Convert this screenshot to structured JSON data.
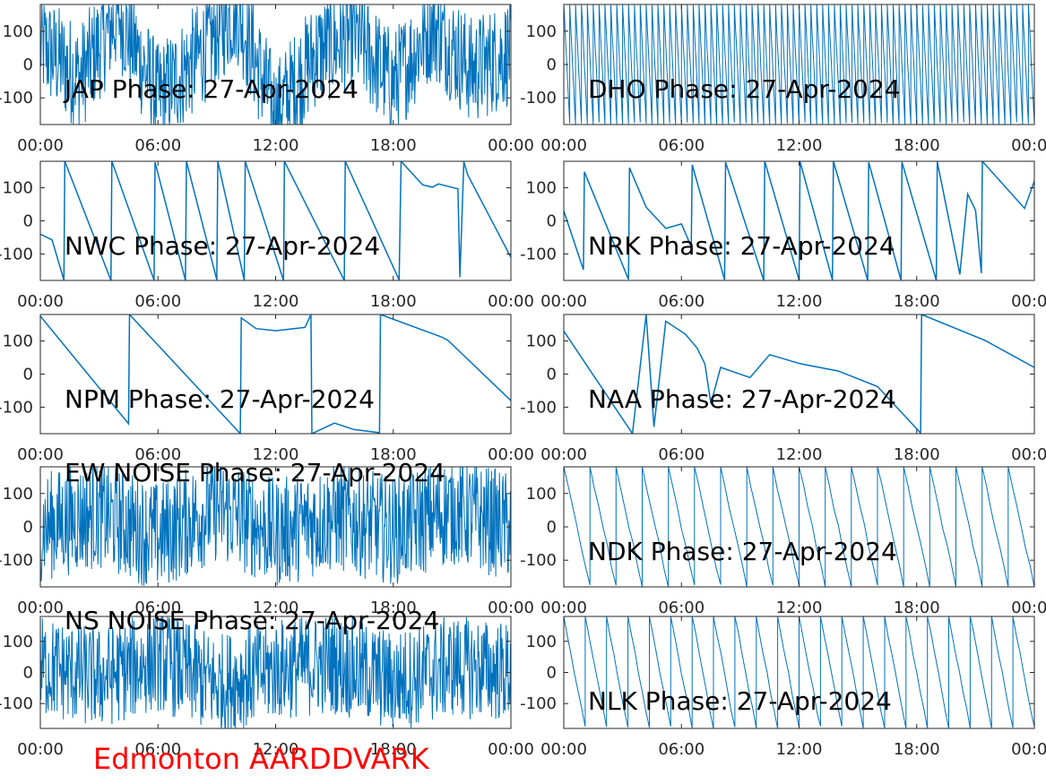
{
  "figure": {
    "footer_text": "Edmonton AARDDVARK",
    "footer_color": "#ff0000",
    "line_color": "#0072bd",
    "axis_color": "#262626"
  },
  "chart_data": [
    {
      "type": "line",
      "title": "JAP Phase: 27-Apr-2024",
      "xlabel": "",
      "ylabel": "",
      "x_ticks": [
        "00:00",
        "06:00",
        "12:00",
        "18:00",
        "00:00"
      ],
      "y_ticks": [
        "100",
        "0",
        "-100"
      ],
      "ylim": [
        -180,
        180
      ],
      "xlim_hours": [
        0,
        24
      ],
      "pattern": "noise",
      "cycles": 0,
      "series": [
        {
          "x_hours": [
            0,
            2,
            4,
            6,
            8,
            10,
            12,
            14,
            16,
            18,
            20,
            22,
            24
          ],
          "values": [
            60,
            -40,
            150,
            -100,
            20,
            170,
            -150,
            30,
            90,
            -60,
            120,
            -20,
            40
          ]
        }
      ]
    },
    {
      "type": "line",
      "title": "DHO Phase: 27-Apr-2024",
      "xlabel": "",
      "ylabel": "",
      "x_ticks": [
        "00:00",
        "06:00",
        "12:00",
        "18:00",
        "00:00"
      ],
      "y_ticks": [
        "100",
        "0",
        "-100"
      ],
      "ylim": [
        -180,
        180
      ],
      "xlim_hours": [
        0,
        24
      ],
      "pattern": "sawtooth",
      "cycles": 80,
      "series": [
        {
          "x_hours": [
            0,
            24
          ],
          "values": [
            180,
            -180
          ]
        }
      ]
    },
    {
      "type": "line",
      "title": "NWC Phase: 27-Apr-2024",
      "xlabel": "",
      "ylabel": "",
      "x_ticks": [
        "00:00",
        "06:00",
        "12:00",
        "18:00",
        "00:00"
      ],
      "y_ticks": [
        "100",
        "0",
        "-100"
      ],
      "ylim": [
        -180,
        180
      ],
      "xlim_hours": [
        0,
        24
      ],
      "pattern": "wrap",
      "cycles": 0,
      "series": [
        {
          "x_hours": [
            0,
            0.6,
            1.2,
            1.25,
            3.6,
            3.65,
            5.8,
            5.85,
            7.4,
            7.45,
            9.0,
            9.05,
            10.4,
            10.45,
            12.4,
            12.45,
            15.5,
            15.55,
            18.3,
            18.4,
            19.3,
            19.5,
            20.0,
            20.3,
            21.3,
            21.4,
            21.6,
            21.8,
            24.0
          ],
          "values": [
            -40,
            -60,
            -180,
            180,
            -180,
            180,
            -180,
            180,
            -180,
            180,
            -180,
            180,
            -180,
            180,
            -180,
            180,
            -180,
            180,
            -180,
            180,
            120,
            110,
            100,
            110,
            95,
            -170,
            180,
            140,
            -110
          ]
        }
      ]
    },
    {
      "type": "line",
      "title": "NRK Phase: 27-Apr-2024",
      "xlabel": "",
      "ylabel": "",
      "x_ticks": [
        "00:00",
        "06:00",
        "12:00",
        "18:00",
        "00:00"
      ],
      "y_ticks": [
        "100",
        "0",
        "-100"
      ],
      "ylim": [
        -180,
        180
      ],
      "xlim_hours": [
        0,
        24
      ],
      "pattern": "wrap",
      "cycles": 0,
      "series": [
        {
          "x_hours": [
            0,
            1.0,
            1.05,
            3.3,
            3.35,
            4.2,
            5.2,
            6.0,
            6.5,
            6.55,
            8.2,
            8.25,
            10.2,
            10.25,
            12.0,
            12.05,
            13.7,
            13.75,
            15.5,
            15.55,
            17.2,
            17.25,
            19.0,
            19.05,
            20.2,
            20.6,
            21.0,
            21.3,
            21.35,
            23.5,
            24.0
          ],
          "values": [
            30,
            -150,
            150,
            -180,
            160,
            40,
            -20,
            -10,
            -80,
            170,
            -180,
            180,
            -180,
            180,
            -180,
            180,
            -180,
            180,
            -180,
            180,
            -180,
            180,
            -180,
            180,
            -160,
            80,
            30,
            -160,
            180,
            40,
            120
          ]
        }
      ]
    },
    {
      "type": "line",
      "title": "NPM Phase: 27-Apr-2024",
      "xlabel": "",
      "ylabel": "",
      "x_ticks": [
        "00:00",
        "06:00",
        "12:00",
        "18:00",
        "00:00"
      ],
      "y_ticks": [
        "100",
        "0",
        "-100"
      ],
      "ylim": [
        -180,
        180
      ],
      "xlim_hours": [
        0,
        24
      ],
      "pattern": "wrap",
      "cycles": 0,
      "series": [
        {
          "x_hours": [
            0,
            4.5,
            4.55,
            10.2,
            10.25,
            11.0,
            12.0,
            13.5,
            13.8,
            13.85,
            15.0,
            16.0,
            17.3,
            17.35,
            20.5,
            20.8,
            24.0
          ],
          "values": [
            175,
            -150,
            180,
            -180,
            170,
            140,
            130,
            140,
            180,
            -180,
            -150,
            -170,
            -180,
            180,
            110,
            100,
            -80
          ]
        }
      ]
    },
    {
      "type": "line",
      "title": "NAA Phase: 27-Apr-2024",
      "xlabel": "",
      "ylabel": "",
      "x_ticks": [
        "00:00",
        "06:00",
        "12:00",
        "18:00",
        "00:00"
      ],
      "y_ticks": [
        "100",
        "0",
        "-100"
      ],
      "ylim": [
        -180,
        180
      ],
      "xlim_hours": [
        0,
        24
      ],
      "pattern": "wrap",
      "cycles": 0,
      "series": [
        {
          "x_hours": [
            0,
            3.5,
            4.2,
            4.6,
            5.2,
            6.2,
            6.8,
            7.2,
            7.5,
            8.0,
            9.5,
            10.5,
            12.0,
            14.0,
            16.0,
            18.2,
            18.25,
            21.5,
            24.0
          ],
          "values": [
            130,
            -180,
            180,
            -160,
            160,
            120,
            80,
            30,
            -90,
            20,
            -10,
            60,
            30,
            10,
            -40,
            -180,
            180,
            100,
            20
          ]
        }
      ]
    },
    {
      "type": "line",
      "title": "EW NOISE Phase: 27-Apr-2024",
      "xlabel": "",
      "ylabel": "",
      "x_ticks": [
        "00:00",
        "06:00",
        "12:00",
        "18:00",
        "00:00"
      ],
      "y_ticks": [
        "100",
        "0",
        "-100"
      ],
      "ylim": [
        -180,
        180
      ],
      "xlim_hours": [
        0,
        24
      ],
      "pattern": "noise",
      "cycles": 0,
      "series": [
        {
          "x_hours": [
            0,
            3,
            6,
            9,
            12,
            15,
            18,
            21,
            24
          ],
          "values": [
            0,
            40,
            -30,
            60,
            -20,
            30,
            -10,
            50,
            0
          ]
        }
      ]
    },
    {
      "type": "line",
      "title": "NDK Phase: 27-Apr-2024",
      "xlabel": "",
      "ylabel": "",
      "x_ticks": [
        "00:00",
        "06:00",
        "12:00",
        "18:00",
        "00:00"
      ],
      "y_ticks": [
        "100",
        "0",
        "-100"
      ],
      "ylim": [
        -180,
        180
      ],
      "xlim_hours": [
        0,
        24
      ],
      "pattern": "sawtooth",
      "cycles": 18,
      "series": [
        {
          "x_hours": [
            0,
            24
          ],
          "values": [
            180,
            -180
          ]
        }
      ]
    },
    {
      "type": "line",
      "title": "NS NOISE Phase: 27-Apr-2024",
      "xlabel": "",
      "ylabel": "",
      "x_ticks": [
        "00:00",
        "06:00",
        "12:00",
        "18:00",
        "00:00"
      ],
      "y_ticks": [
        "100",
        "0",
        "-100"
      ],
      "ylim": [
        -180,
        180
      ],
      "xlim_hours": [
        0,
        24
      ],
      "pattern": "noise",
      "cycles": 0,
      "series": [
        {
          "x_hours": [
            0,
            3,
            6,
            9,
            12,
            15,
            18,
            21,
            24
          ],
          "values": [
            20,
            -20,
            40,
            -40,
            10,
            30,
            -30,
            20,
            0
          ]
        }
      ]
    },
    {
      "type": "line",
      "title": "NLK Phase: 27-Apr-2024",
      "xlabel": "",
      "ylabel": "",
      "x_ticks": [
        "00:00",
        "06:00",
        "12:00",
        "18:00",
        "00:00"
      ],
      "y_ticks": [
        "100",
        "0",
        "-100"
      ],
      "ylim": [
        -180,
        180
      ],
      "xlim_hours": [
        0,
        24
      ],
      "pattern": "sawtooth",
      "cycles": 22,
      "series": [
        {
          "x_hours": [
            0,
            24
          ],
          "values": [
            180,
            -180
          ]
        }
      ]
    }
  ]
}
